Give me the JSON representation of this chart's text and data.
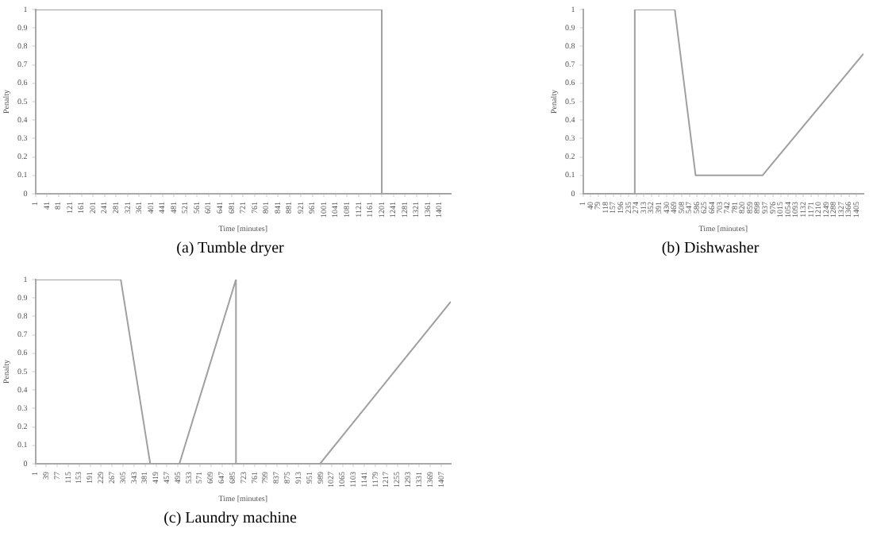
{
  "chart_data": [
    {
      "type": "line",
      "title": "(a) Tumble dryer",
      "xlabel": "Time [minutes]",
      "ylabel": "Penalty",
      "xlim": [
        1,
        1440
      ],
      "ylim": [
        0,
        1
      ],
      "xticks": [
        1,
        41,
        81,
        121,
        161,
        201,
        241,
        281,
        321,
        361,
        401,
        441,
        481,
        521,
        561,
        601,
        641,
        681,
        721,
        761,
        801,
        841,
        881,
        921,
        961,
        1001,
        1041,
        1081,
        1121,
        1161,
        1201,
        1241,
        1281,
        1321,
        1361,
        1401
      ],
      "yticks": [
        0,
        0.1,
        0.2,
        0.3,
        0.4,
        0.5,
        0.6,
        0.7,
        0.8,
        0.9,
        1
      ],
      "series": [
        {
          "color": "#a0a0a0",
          "x": [
            1,
            1201,
            1201,
            1440
          ],
          "values": [
            1,
            1,
            0,
            0
          ]
        }
      ]
    },
    {
      "type": "line",
      "title": "(b) Dishwasher",
      "xlabel": "Time [minutes]",
      "ylabel": "Penalty",
      "xlim": [
        1,
        1440
      ],
      "ylim": [
        0,
        1
      ],
      "xticks": [
        1,
        40,
        79,
        118,
        157,
        196,
        235,
        274,
        313,
        352,
        391,
        430,
        469,
        508,
        547,
        586,
        625,
        664,
        703,
        742,
        781,
        820,
        859,
        898,
        937,
        976,
        1015,
        1054,
        1093,
        1132,
        1171,
        1210,
        1249,
        1288,
        1327,
        1366,
        1405
      ],
      "yticks": [
        0,
        0.1,
        0.2,
        0.3,
        0.4,
        0.5,
        0.6,
        0.7,
        0.8,
        0.9,
        1
      ],
      "series": [
        {
          "color": "#a0a0a0",
          "x": [
            1,
            267,
            267,
            472,
            579,
            922,
            1440
          ],
          "values": [
            0,
            0,
            1,
            1,
            0.1,
            0.1,
            0.76
          ]
        }
      ]
    },
    {
      "type": "line",
      "title": "(c) Laundry machine",
      "xlabel": "Time [minutes]",
      "ylabel": "Penalty",
      "xlim": [
        1,
        1440
      ],
      "ylim": [
        0,
        1
      ],
      "xticks": [
        1,
        39,
        77,
        115,
        153,
        191,
        229,
        267,
        305,
        343,
        381,
        419,
        457,
        495,
        533,
        571,
        609,
        647,
        685,
        723,
        761,
        799,
        837,
        875,
        913,
        951,
        989,
        1027,
        1065,
        1103,
        1141,
        1179,
        1217,
        1255,
        1293,
        1331,
        1369,
        1407
      ],
      "yticks": [
        0,
        0.1,
        0.2,
        0.3,
        0.4,
        0.5,
        0.6,
        0.7,
        0.8,
        0.9,
        1
      ],
      "series": [
        {
          "color": "#a0a0a0",
          "x": [
            1,
            297,
            399,
            500,
            696,
            696,
            987,
            1440
          ],
          "values": [
            1,
            1,
            0,
            0,
            1,
            0,
            0,
            0.88
          ]
        }
      ]
    }
  ]
}
